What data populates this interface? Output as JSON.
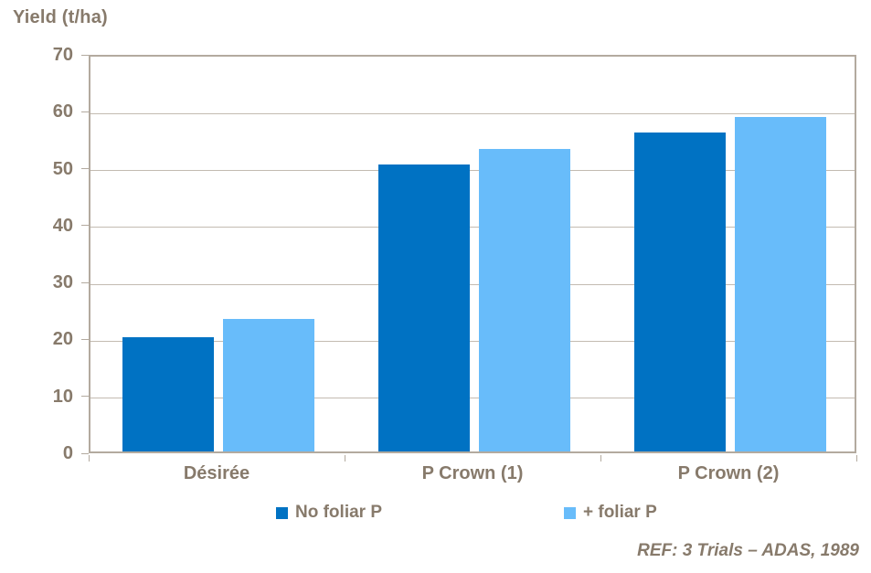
{
  "chart_data": {
    "type": "bar",
    "title": "",
    "ylabel": "Yield (t/ha)",
    "xlabel": "",
    "ylim": [
      0,
      70
    ],
    "yticks": [
      0,
      10,
      20,
      30,
      40,
      50,
      60,
      70
    ],
    "grid": true,
    "categories": [
      "Désirée",
      "P Crown (1)",
      "P Crown (2)"
    ],
    "series": [
      {
        "name": "No foliar P",
        "color": "#0072C3",
        "values": [
          20.0,
          50.4,
          56.0
        ]
      },
      {
        "name": "+ foliar P",
        "color": "#68BCFA",
        "values": [
          23.2,
          53.2,
          58.8
        ]
      }
    ],
    "legend_position": "bottom"
  },
  "footer": {
    "ref": "REF: 3 Trials – ADAS, 1989"
  },
  "colors": {
    "text": "#877A6B",
    "plot_border": "#B3AA9F",
    "gridline": "#C3BBB1",
    "series_dark_blue": "#0072C3",
    "series_light_blue": "#68BCFA"
  }
}
